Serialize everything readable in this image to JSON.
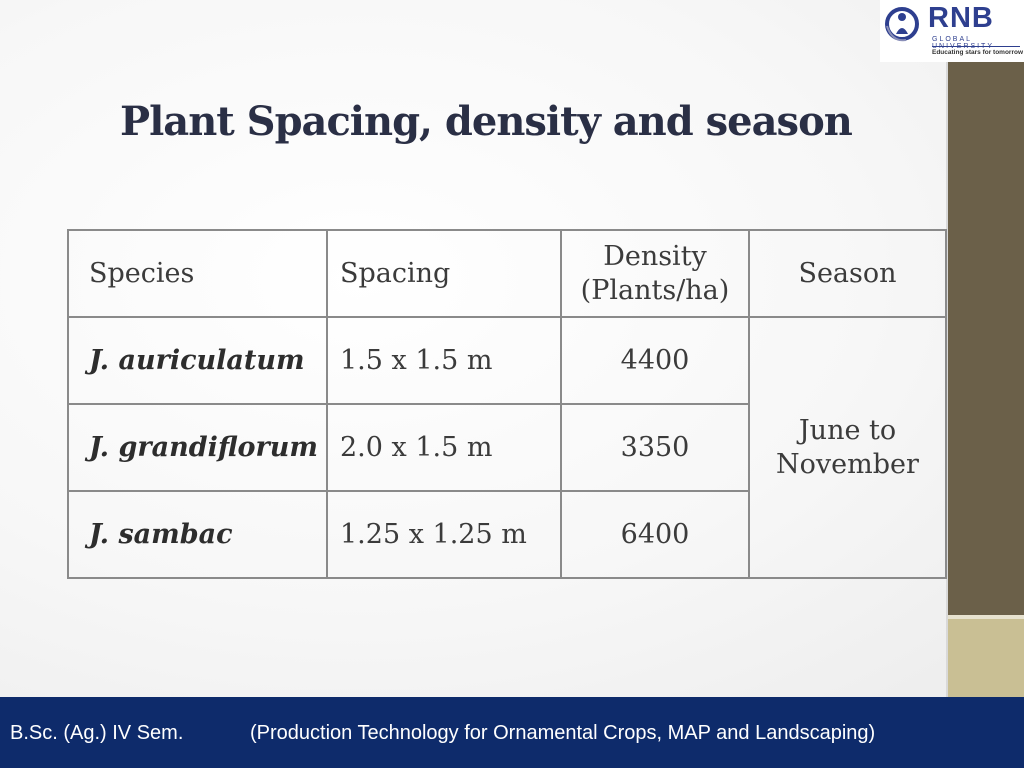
{
  "logo": {
    "name": "RNB",
    "subtitle": "GLOBAL UNIVERSITY",
    "tagline": "Educating stars for tomorrow"
  },
  "slide": {
    "title": "Plant Spacing, density and season"
  },
  "table": {
    "headers": {
      "species": "Species",
      "spacing": "Spacing",
      "density_line1": "Density",
      "density_line2": "(Plants/ha)",
      "season": "Season"
    },
    "rows": [
      {
        "species": "J. auriculatum",
        "spacing": "1.5 x 1.5 m",
        "density": "4400"
      },
      {
        "species": "J. grandiflorum",
        "spacing": "2.0 x 1.5 m",
        "density": "3350"
      },
      {
        "species": "J. sambac",
        "spacing": "1.25 x 1.25 m",
        "density": "6400"
      }
    ],
    "season_line1": "June to",
    "season_line2": "November"
  },
  "footer": {
    "course": "B.Sc. (Ag.) IV Sem.",
    "subject": "(Production Technology for Ornamental Crops, MAP and Landscaping)"
  },
  "colors": {
    "footer_bg": "#0e2b6b",
    "brand_blue": "#2e3f8f",
    "side_bar_dark": "#6b6049",
    "side_bar_light": "#c9bf94"
  }
}
